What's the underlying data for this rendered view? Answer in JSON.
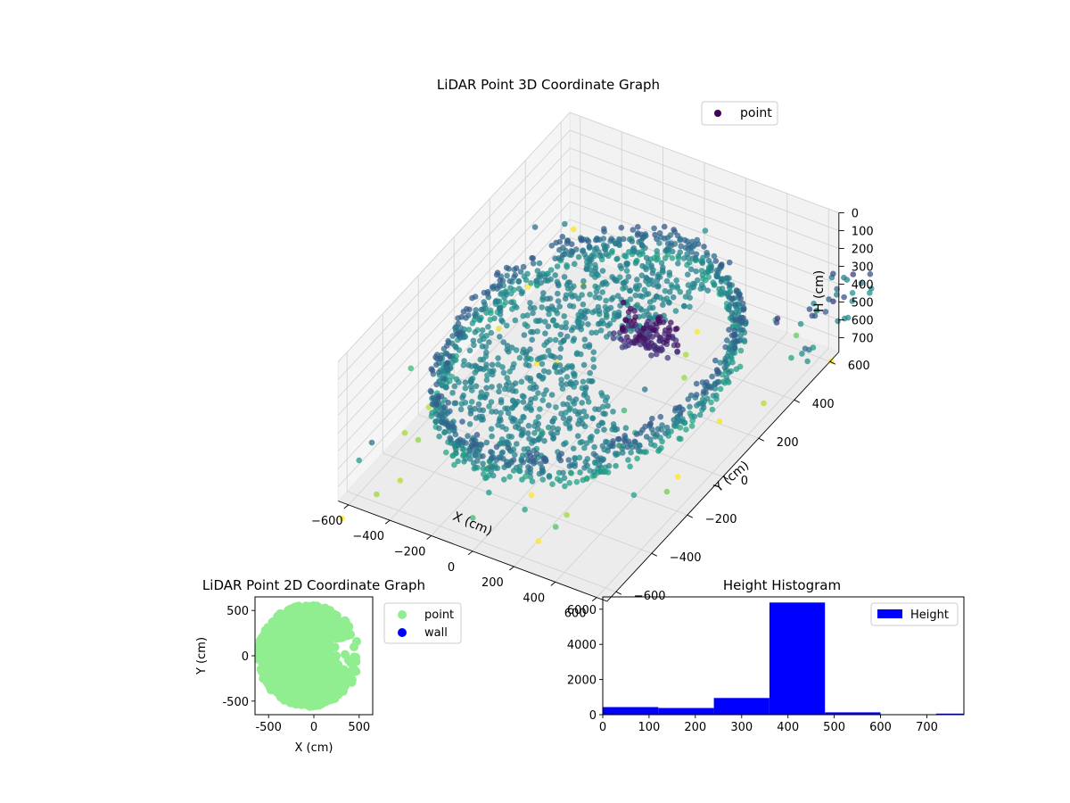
{
  "figure": {
    "background": "#ffffff"
  },
  "chart_data": [
    {
      "type": "scatter",
      "projection": "3d",
      "title": "LiDAR Point 3D Coordinate Graph",
      "xlabel": "X (cm)",
      "ylabel": "Y (cm)",
      "zlabel": "H (cm)",
      "xlim": [
        -650,
        650
      ],
      "ylim": [
        -650,
        650
      ],
      "zlim": [
        0,
        780
      ],
      "z_inverted": true,
      "x_ticks": [
        "−600",
        "−400",
        "−200",
        "0",
        "200",
        "400",
        "600"
      ],
      "y_ticks": [
        "−600",
        "−400",
        "−200",
        "0",
        "200",
        "400",
        "600"
      ],
      "z_ticks": [
        "0",
        "100",
        "200",
        "300",
        "400",
        "500",
        "600",
        "700"
      ],
      "colormap": "viridis",
      "grid": true,
      "legend": {
        "position": "top-right",
        "entries": [
          "point"
        ]
      },
      "series": [
        {
          "name": "point",
          "color": "#440154",
          "description_of_shape": "ring wall of points at radius ~550 cm from H 300 to 500 cm, with a dense floor disc near H 400 cm, an open gap toward +X, and sparse outliers",
          "clusters": [
            {
              "shape": "ring",
              "r": 550,
              "h_from": 300,
              "h_to": 480,
              "open_angle_deg": [
                -25,
                55
              ],
              "count": 900
            },
            {
              "shape": "disc",
              "r": 500,
              "h": 400,
              "open_angle_deg": [
                -20,
                50
              ],
              "count": 700
            },
            {
              "shape": "blob",
              "x": 180,
              "y": 50,
              "h_from": 150,
              "h_to": 260,
              "count": 120
            },
            {
              "shape": "sparse",
              "count": 90
            }
          ]
        }
      ]
    },
    {
      "type": "scatter",
      "title": "LiDAR Point 2D Coordinate Graph",
      "xlabel": "X (cm)",
      "ylabel": "Y (cm)",
      "xlim": [
        -650,
        650
      ],
      "ylim": [
        -650,
        650
      ],
      "x_ticks": [
        -500,
        0,
        500
      ],
      "y_ticks": [
        -500,
        0,
        500
      ],
      "grid": false,
      "legend": {
        "position": "outside-right",
        "entries": [
          "point",
          "wall"
        ]
      },
      "series": [
        {
          "name": "point",
          "color": "#90ee90"
        },
        {
          "name": "wall",
          "color": "#0000ff"
        }
      ]
    },
    {
      "type": "bar",
      "title": "Height Histogram",
      "xlim": [
        0,
        780
      ],
      "ylim": [
        0,
        6700
      ],
      "x_ticks": [
        0,
        100,
        200,
        300,
        400,
        500,
        600,
        700
      ],
      "y_ticks": [
        0,
        2000,
        4000,
        6000
      ],
      "legend": {
        "position": "top-right",
        "entries": [
          "Height"
        ]
      },
      "series": [
        {
          "name": "Height",
          "color": "#0000ff",
          "bins": [
            {
              "from": 0,
              "to": 120,
              "count": 430
            },
            {
              "from": 120,
              "to": 240,
              "count": 380
            },
            {
              "from": 240,
              "to": 360,
              "count": 950
            },
            {
              "from": 360,
              "to": 480,
              "count": 6380
            },
            {
              "from": 480,
              "to": 600,
              "count": 130
            },
            {
              "from": 600,
              "to": 720,
              "count": 15
            },
            {
              "from": 720,
              "to": 780,
              "count": 60
            }
          ]
        }
      ]
    }
  ]
}
